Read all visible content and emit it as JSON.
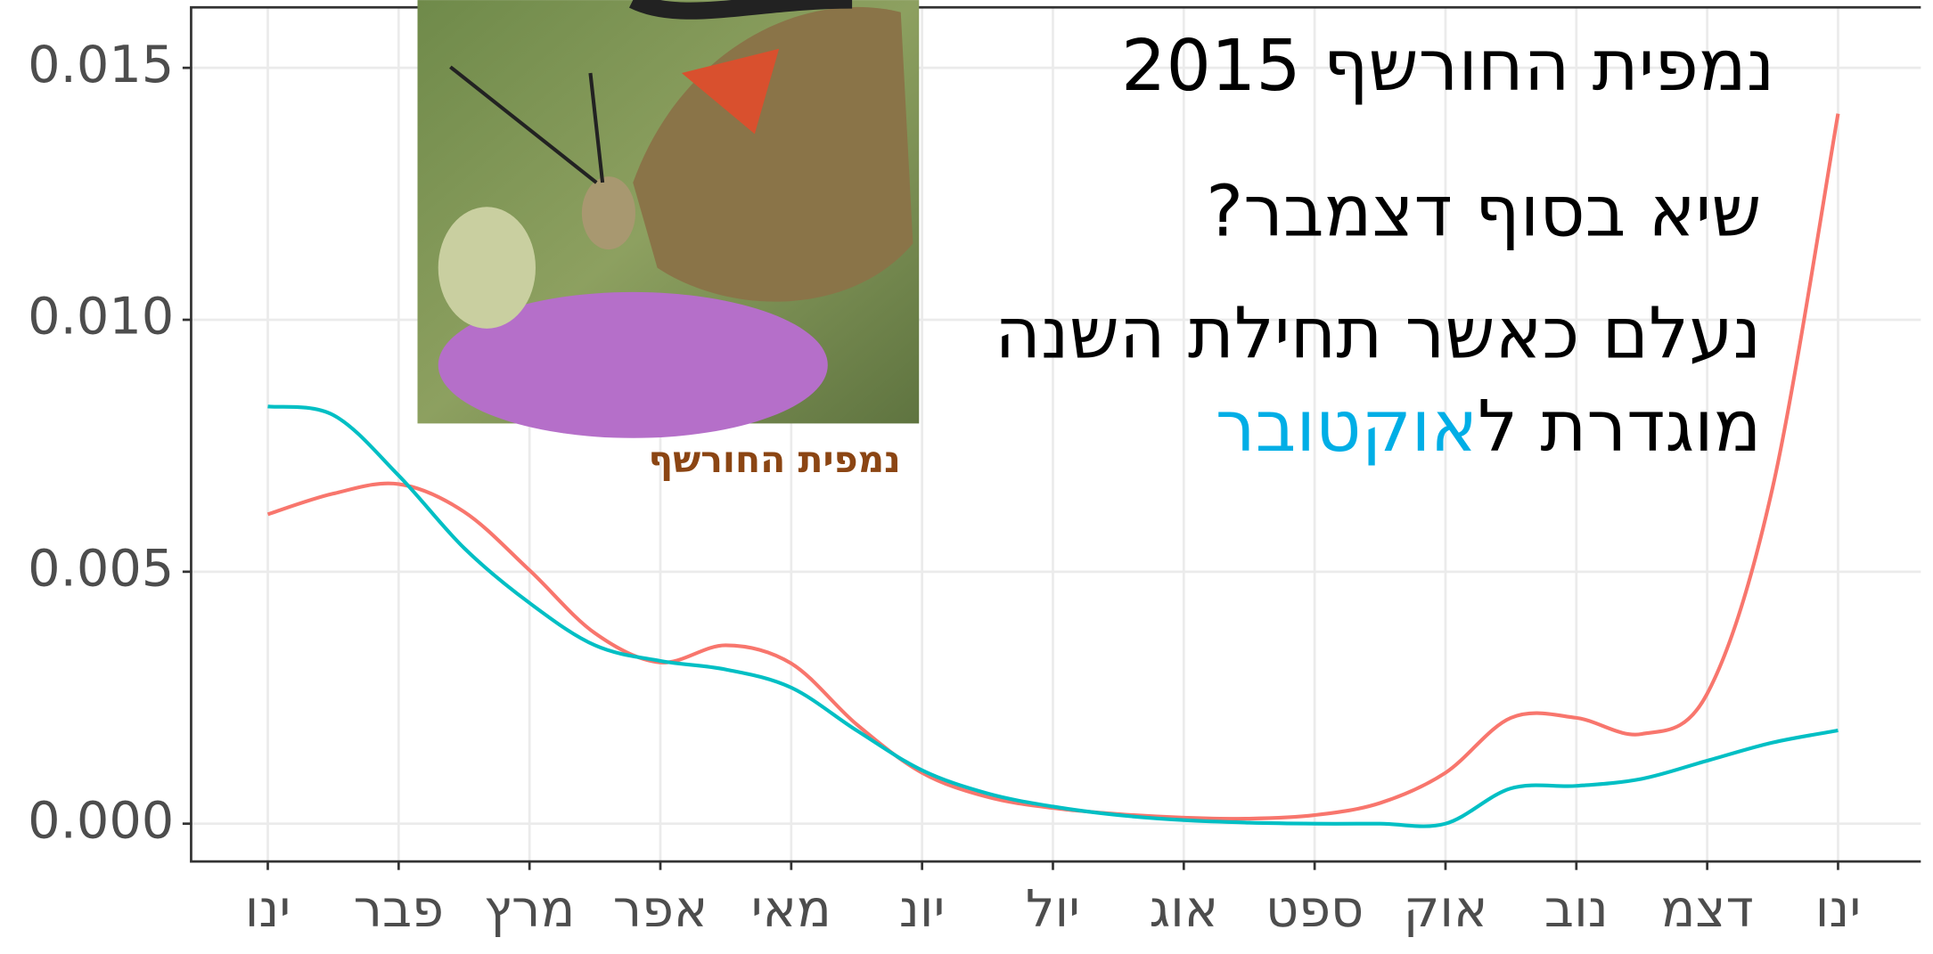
{
  "chart_data": {
    "type": "line",
    "title": "נמפית החורשף 2015",
    "annotations": {
      "question": "שיא בסוף דצמבר?",
      "note_line1": "נעלם כאשר תחילת השנה",
      "note_line2_start": "מוגדרת ל",
      "note_line2_highlight": "אוקטובר",
      "photo_caption": "נמפית החורשף"
    },
    "categories": [
      "ינו",
      null,
      "פבר",
      null,
      "מרץ",
      null,
      "אפר",
      null,
      "מאי",
      null,
      "יונ",
      null,
      "יול",
      null,
      "אוג",
      null,
      "ספט",
      null,
      "אוק",
      null,
      "נוב",
      null,
      "דצמ",
      null,
      "ינו"
    ],
    "series": [
      {
        "color": "#F8766D",
        "values": [
          0.00614,
          0.00655,
          0.00674,
          0.00619,
          0.00503,
          0.00378,
          0.0032,
          0.00354,
          0.00318,
          0.00197,
          0.00101,
          0.00053,
          0.00031,
          0.00019,
          0.00012,
          0.0001,
          0.00017,
          0.00041,
          0.00101,
          0.0021,
          0.0021,
          0.00178,
          0.00258,
          0.00667,
          0.01409
        ]
      },
      {
        "color": "#00BFC4",
        "values": [
          0.00828,
          0.00811,
          0.00691,
          0.00547,
          0.00438,
          0.00354,
          0.00323,
          0.00306,
          0.0027,
          0.00185,
          0.00106,
          0.0006,
          0.00034,
          0.00017,
          7e-05,
          2e-05,
          0,
          0,
          0,
          0.0007,
          0.00075,
          0.00089,
          0.00125,
          0.00161,
          0.00185
        ]
      }
    ],
    "ylim": [
      -0.00075,
      0.0162
    ],
    "yticks": [
      {
        "value": 0,
        "label": "0.000"
      },
      {
        "value": 0.005,
        "label": "0.005"
      },
      {
        "value": 0.01,
        "label": "0.010"
      },
      {
        "value": 0.015,
        "label": "0.015"
      }
    ],
    "grid": true,
    "question_color": "#ff0000",
    "highlight_color": "#00aee6",
    "caption_color": "#8b4513"
  }
}
